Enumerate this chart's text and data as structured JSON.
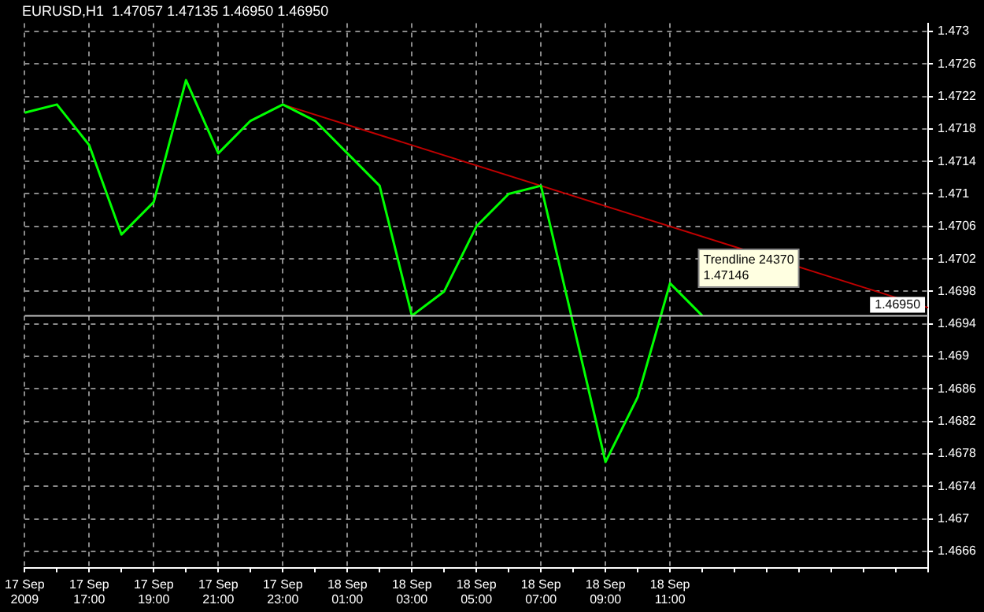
{
  "chart_data": {
    "type": "line",
    "title": "EURUSD,H1  1.47057 1.47135 1.46950 1.46950",
    "categories": [
      "17 Sep 2009",
      null,
      "17 Sep 17:00",
      null,
      "17 Sep 19:00",
      null,
      "17 Sep 21:00",
      null,
      "17 Sep 23:00",
      null,
      "18 Sep 01:00",
      null,
      "18 Sep 03:00",
      null,
      "18 Sep 05:00",
      null,
      "18 Sep 07:00",
      null,
      "18 Sep 09:00",
      null,
      "18 Sep 11:00",
      null,
      null,
      null,
      null,
      null,
      null,
      null,
      null
    ],
    "series": [
      {
        "color": "#00ff00",
        "values": [
          1.472,
          1.4721,
          1.4716,
          1.4705,
          1.4709,
          1.4724,
          1.4715,
          1.4719,
          1.4721,
          1.4719,
          1.4715,
          1.4711,
          1.4695,
          1.4698,
          1.4706,
          1.471,
          1.4711,
          1.4694,
          1.4677,
          1.4685,
          1.4699,
          1.4695,
          null,
          null,
          null,
          null,
          null,
          null,
          null
        ]
      },
      {
        "type": "line",
        "color": "#c00000",
        "values": [
          null,
          null,
          null,
          null,
          null,
          null,
          null,
          null,
          1.4721,
          null,
          null,
          null,
          null,
          null,
          null,
          null,
          null,
          null,
          null,
          null,
          null,
          null,
          null,
          null,
          null,
          null,
          null,
          null,
          1.4696
        ]
      }
    ],
    "ylim": [
      1.4664,
      1.4731
    ],
    "yticks": [
      1.473,
      1.4726,
      1.4722,
      1.4718,
      1.4714,
      1.471,
      1.4706,
      1.4702,
      1.4698,
      1.4694,
      1.469,
      1.4686,
      1.4682,
      1.4678,
      1.4674,
      1.467,
      1.4666
    ],
    "ref_lines": [
      {
        "axis": "y",
        "value": 1.4695,
        "label": "1.46950",
        "color": "#c0c0c0"
      }
    ],
    "annotations": [
      "Trendline 24370",
      "1.47146"
    ],
    "grid": true,
    "legend": false,
    "marker": "none",
    "line_style": "solid"
  }
}
